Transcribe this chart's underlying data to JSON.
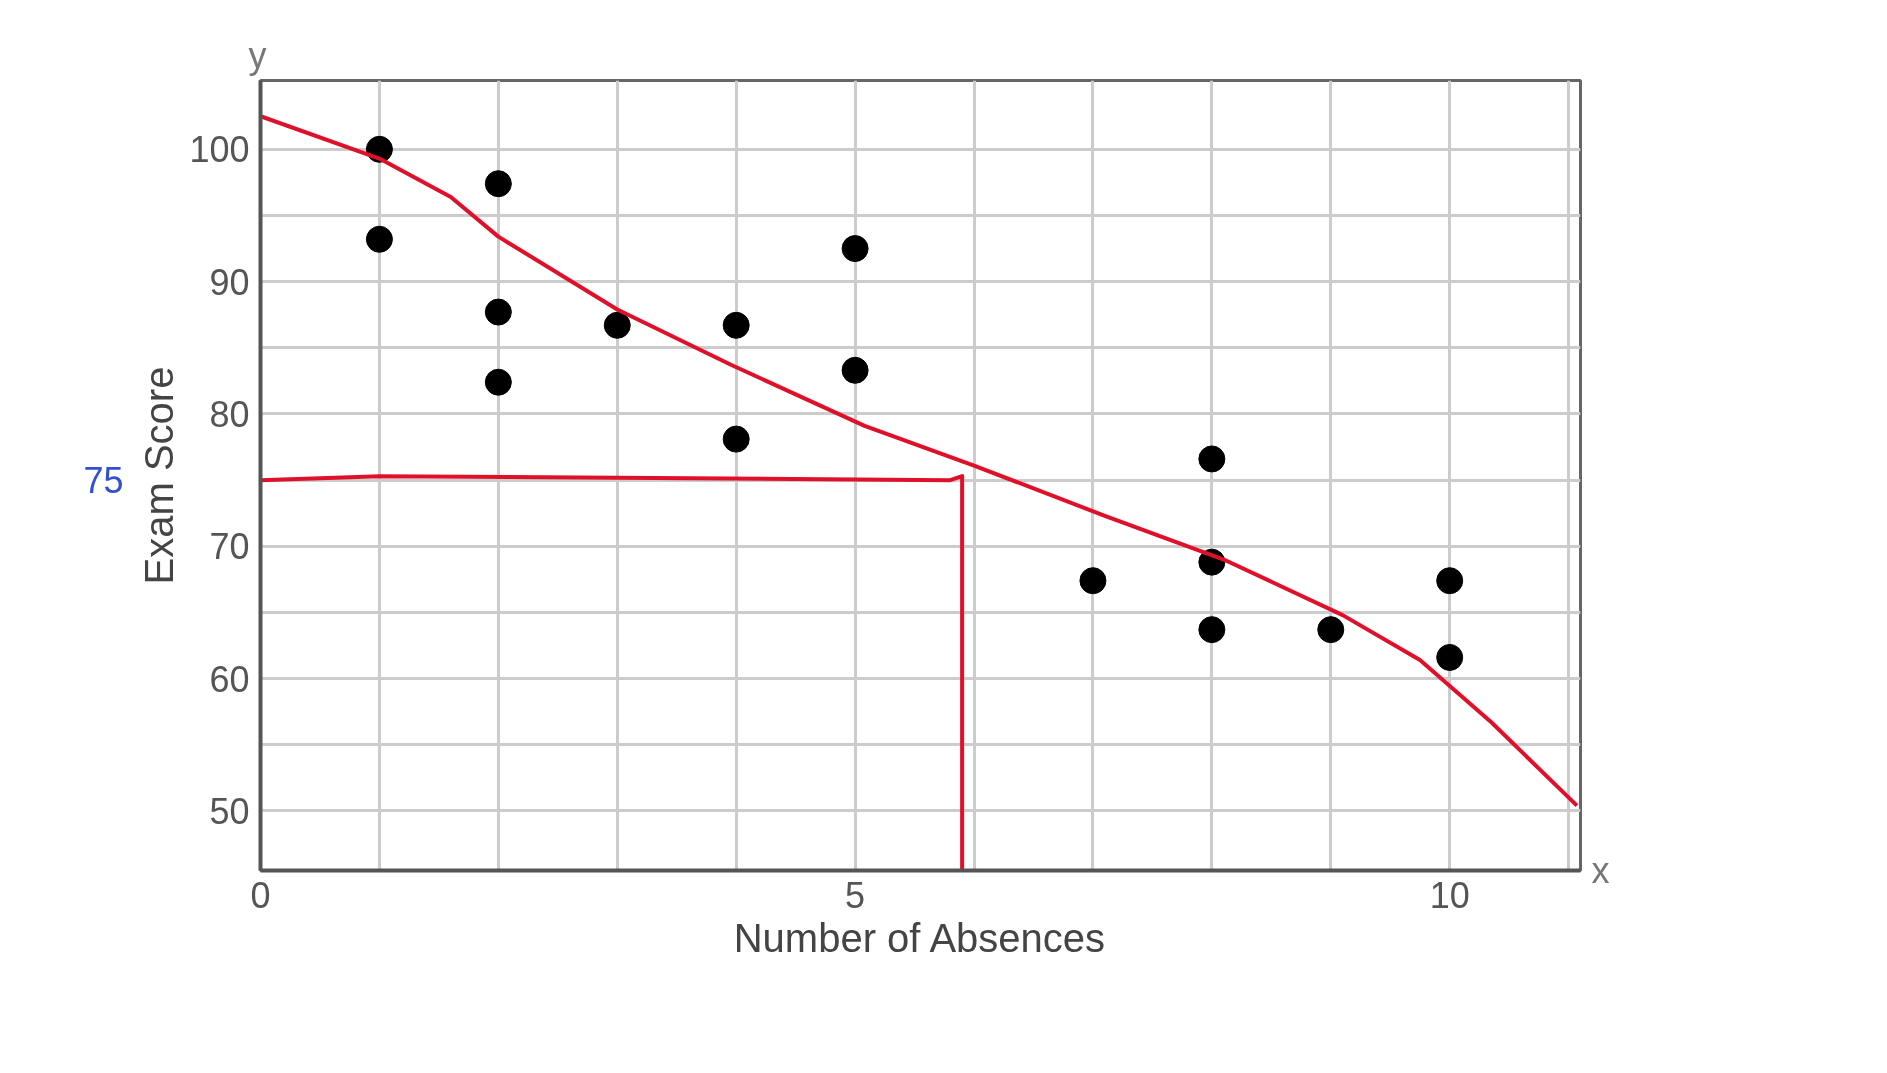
{
  "chart_data": {
    "type": "scatter",
    "xlabel": "Number of Absences",
    "ylabel": "Exam Score",
    "x": [
      1,
      1,
      2,
      2,
      2,
      3,
      4,
      4,
      5,
      5,
      7,
      8,
      8,
      8,
      9,
      10,
      10
    ],
    "series": [
      {
        "color": "#000000",
        "marker": "circle",
        "values": [
          100,
          93.2,
          97.4,
          87.7,
          82.4,
          86.7,
          86.7,
          78.1,
          92.5,
          83.3,
          67.4,
          76.6,
          68.8,
          63.7,
          63.7,
          67.4,
          61.6
        ]
      },
      {
        "type": "line",
        "color": "#e0102a",
        "x": [
          0,
          1,
          1.6,
          2,
          3,
          3.96,
          5.08,
          6,
          7.1,
          8.1,
          9.1,
          9.75,
          10.35,
          11.07
        ],
        "values": [
          102.5,
          99.3,
          96.4,
          93.4,
          87.9,
          83.7,
          79.1,
          76.1,
          72.3,
          69,
          64.8,
          61.4,
          56.7,
          50.4
        ]
      },
      {
        "type": "line",
        "color": "#e0102a",
        "x": [
          0,
          1,
          5.8,
          5.9,
          5.9
        ],
        "values": [
          75,
          75.3,
          75,
          75.3,
          45.5
        ]
      }
    ],
    "line_style": "solid",
    "xlim": [
      0,
      11.1
    ],
    "ylim": [
      45.5,
      105.2
    ],
    "xticks": [
      {
        "value": 0,
        "label": "0"
      },
      {
        "value": 1,
        "label": null
      },
      {
        "value": 2,
        "label": null
      },
      {
        "value": 3,
        "label": null
      },
      {
        "value": 4,
        "label": null
      },
      5,
      {
        "value": 6,
        "label": null
      },
      {
        "value": 7,
        "label": null
      },
      {
        "value": 8,
        "label": null
      },
      {
        "value": 9,
        "label": null
      },
      10,
      {
        "value": 11,
        "label": null
      }
    ],
    "yticks": [
      50,
      {
        "value": 55,
        "label": null
      },
      60,
      {
        "value": 65,
        "label": null
      },
      70,
      {
        "value": 75,
        "label": null
      },
      80,
      {
        "value": 85,
        "label": null
      },
      90,
      {
        "value": 95,
        "label": null
      },
      100
    ],
    "grid": true,
    "annotations": [
      "y",
      "x",
      "75"
    ]
  }
}
